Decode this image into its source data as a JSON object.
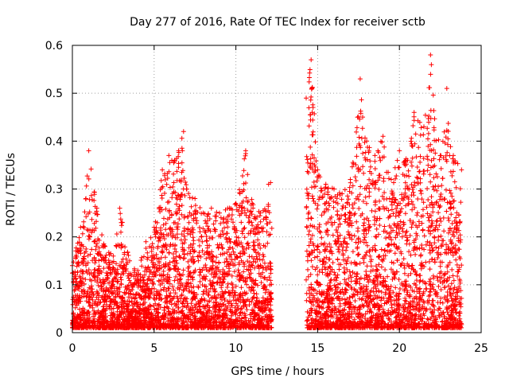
{
  "chart_data": {
    "type": "scatter",
    "title": "Day 277 of 2016, Rate Of TEC Index for receiver sctb",
    "xlabel": "GPS time / hours",
    "ylabel": "ROTI / TECUs",
    "xlim": [
      0,
      25
    ],
    "ylim": [
      0,
      0.6
    ],
    "xticks": [
      0,
      5,
      10,
      15,
      20,
      25
    ],
    "xtick_labels": [
      "0",
      "5",
      "10",
      "15",
      "20",
      "25"
    ],
    "yticks": [
      0,
      0.1,
      0.2,
      0.3,
      0.4,
      0.5,
      0.6
    ],
    "ytick_labels": [
      "0",
      "0.1",
      "0.2",
      "0.3",
      "0.4",
      "0.5",
      "0.6"
    ],
    "grid": true,
    "marker": "+",
    "series": [
      {
        "name": "ROTI",
        "color": "#ff0000",
        "segments": [
          {
            "x_start": 0.0,
            "x_end": 12.2,
            "note": "continuous data, dense 0.01-0.25"
          },
          {
            "x_start": 14.3,
            "x_end": 23.8,
            "note": "continuous data, dense 0.01-0.35"
          }
        ],
        "envelope": [
          {
            "x": 0.0,
            "y": 0.14
          },
          {
            "x": 0.5,
            "y": 0.22
          },
          {
            "x": 1.0,
            "y": 0.38
          },
          {
            "x": 1.5,
            "y": 0.26
          },
          {
            "x": 2.0,
            "y": 0.18
          },
          {
            "x": 2.5,
            "y": 0.16
          },
          {
            "x": 2.9,
            "y": 0.26
          },
          {
            "x": 3.5,
            "y": 0.15
          },
          {
            "x": 4.0,
            "y": 0.13
          },
          {
            "x": 4.5,
            "y": 0.19
          },
          {
            "x": 5.0,
            "y": 0.22
          },
          {
            "x": 5.5,
            "y": 0.34
          },
          {
            "x": 5.9,
            "y": 0.37
          },
          {
            "x": 6.5,
            "y": 0.38
          },
          {
            "x": 6.8,
            "y": 0.42
          },
          {
            "x": 7.0,
            "y": 0.3
          },
          {
            "x": 7.5,
            "y": 0.28
          },
          {
            "x": 8.0,
            "y": 0.25
          },
          {
            "x": 8.5,
            "y": 0.26
          },
          {
            "x": 9.0,
            "y": 0.25
          },
          {
            "x": 9.5,
            "y": 0.26
          },
          {
            "x": 10.0,
            "y": 0.27
          },
          {
            "x": 10.6,
            "y": 0.38
          },
          {
            "x": 11.0,
            "y": 0.27
          },
          {
            "x": 11.5,
            "y": 0.25
          },
          {
            "x": 12.0,
            "y": 0.31
          },
          {
            "x": 14.3,
            "y": 0.49
          },
          {
            "x": 14.6,
            "y": 0.57
          },
          {
            "x": 15.0,
            "y": 0.34
          },
          {
            "x": 15.5,
            "y": 0.31
          },
          {
            "x": 16.0,
            "y": 0.3
          },
          {
            "x": 16.5,
            "y": 0.29
          },
          {
            "x": 17.0,
            "y": 0.32
          },
          {
            "x": 17.6,
            "y": 0.53
          },
          {
            "x": 18.0,
            "y": 0.4
          },
          {
            "x": 18.5,
            "y": 0.37
          },
          {
            "x": 19.0,
            "y": 0.41
          },
          {
            "x": 19.5,
            "y": 0.32
          },
          {
            "x": 20.0,
            "y": 0.38
          },
          {
            "x": 20.5,
            "y": 0.36
          },
          {
            "x": 20.9,
            "y": 0.46
          },
          {
            "x": 21.5,
            "y": 0.43
          },
          {
            "x": 21.9,
            "y": 0.58
          },
          {
            "x": 22.5,
            "y": 0.37
          },
          {
            "x": 22.9,
            "y": 0.51
          },
          {
            "x": 23.3,
            "y": 0.37
          },
          {
            "x": 23.8,
            "y": 0.34
          }
        ]
      }
    ]
  }
}
